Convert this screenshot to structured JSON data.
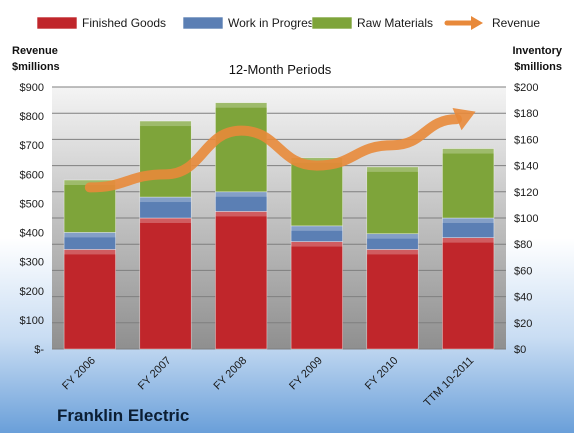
{
  "chart_data": {
    "type": "bar",
    "stacked": true,
    "subtitle": "12-Month Periods",
    "company": "Franklin Electric",
    "categories": [
      "FY 2006",
      "FY 2007",
      "FY 2008",
      "FY 2009",
      "FY 2010",
      "TTM 10-2011"
    ],
    "series": [
      {
        "name": "Finished Goods",
        "color": "#c0262b",
        "values": [
          76,
          100,
          105,
          82,
          76,
          85
        ]
      },
      {
        "name": "Work in Progress",
        "color": "#5b7fb4",
        "values": [
          13,
          16,
          15,
          12,
          12,
          15
        ]
      },
      {
        "name": "Raw Materials",
        "color": "#7ea43a",
        "values": [
          40,
          58,
          68,
          52,
          51,
          53
        ]
      }
    ],
    "line_series": {
      "name": "Revenue",
      "color": "#e8893a",
      "values": [
        555,
        600,
        750,
        630,
        700,
        805
      ]
    },
    "y_left": {
      "title_line1": "Revenue",
      "title_line2": "$millions",
      "ylim": [
        0,
        900
      ],
      "ticks": [
        "$-",
        "$100",
        "$200",
        "$300",
        "$400",
        "$500",
        "$600",
        "$700",
        "$800",
        "$900"
      ]
    },
    "y_right": {
      "title_line1": "Inventory",
      "title_line2": "$millions",
      "ylim": [
        0,
        200
      ],
      "ticks": [
        "$0",
        "$20",
        "$40",
        "$60",
        "$80",
        "$100",
        "$120",
        "$140",
        "$160",
        "$180",
        "$200"
      ]
    },
    "grid": true,
    "legend_position": "top"
  }
}
